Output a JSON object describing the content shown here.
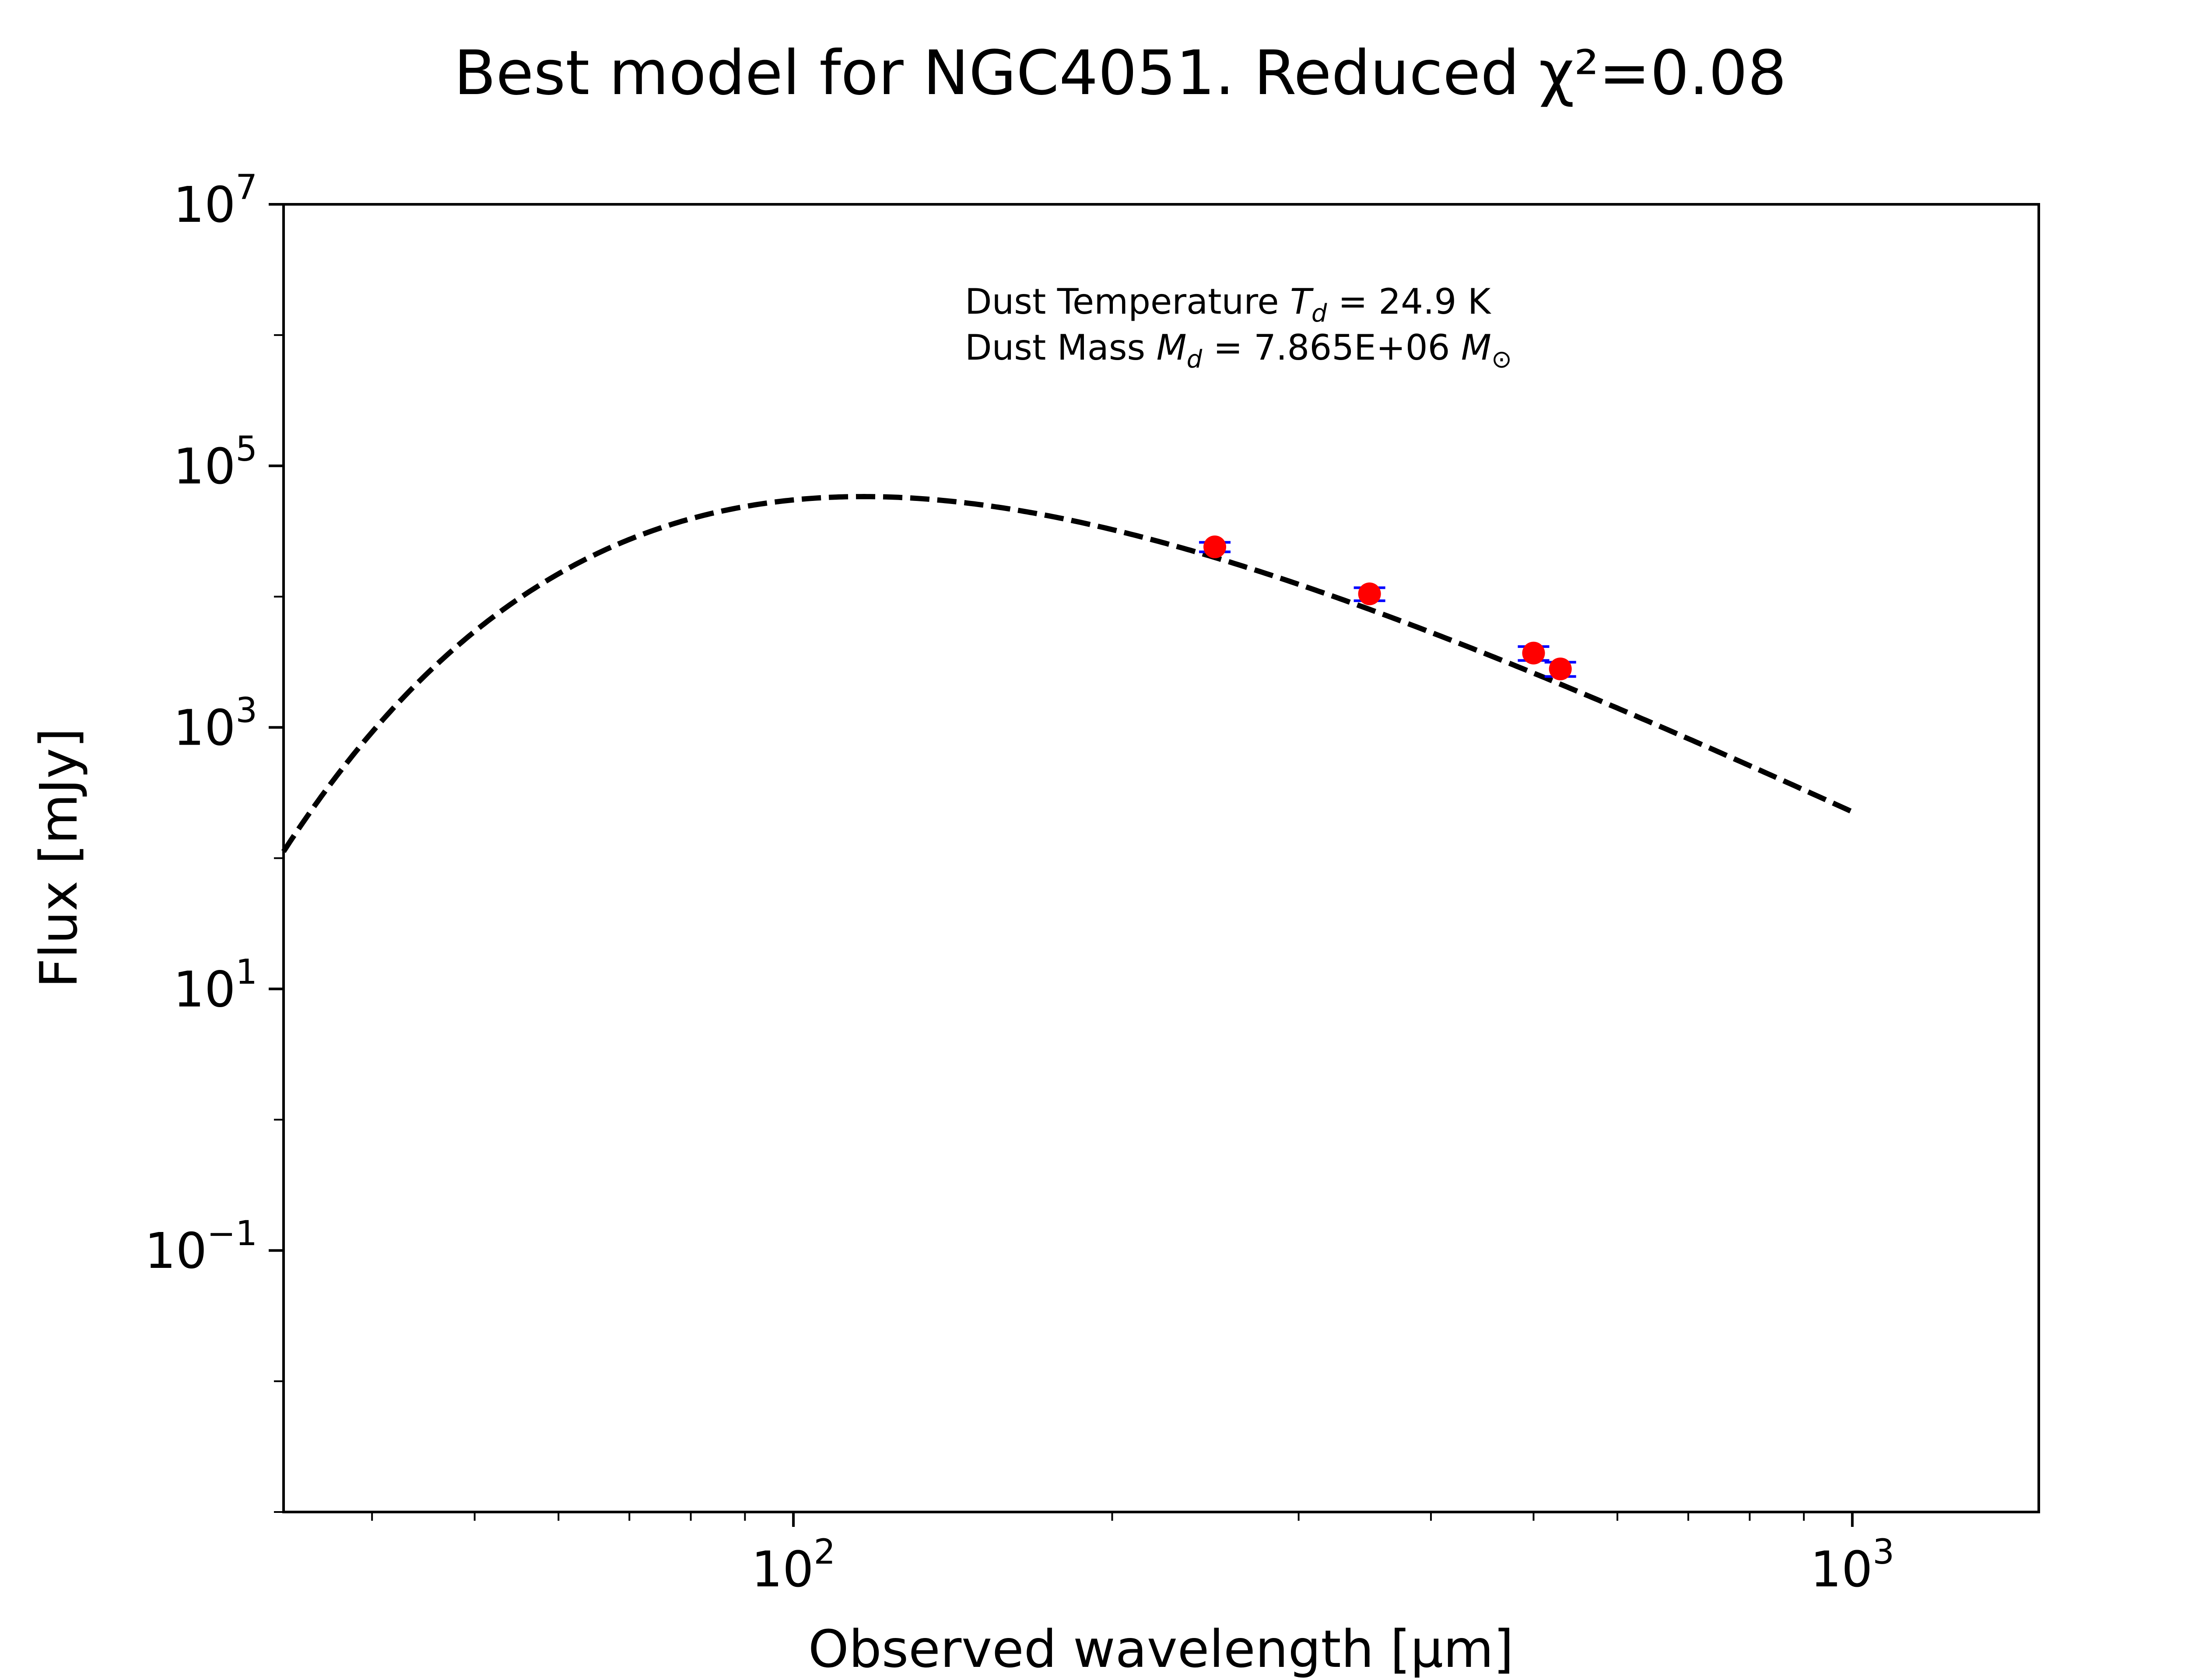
{
  "chart_data": {
    "type": "scatter",
    "title": "Best model for NGC4051. Reduced χ²=0.08",
    "xlabel": "Observed wavelength [μm]",
    "ylabel": "Flux [mJy]",
    "xscale": "log",
    "yscale": "log",
    "xlim": [
      33,
      1500
    ],
    "ylim": [
      0.001,
      10000000
    ],
    "grid": false,
    "x_tick_labels": [
      {
        "value": 100,
        "base": "10",
        "exp": "2"
      },
      {
        "value": 1000,
        "base": "10",
        "exp": "3"
      }
    ],
    "y_tick_labels": [
      {
        "value": 10000000,
        "base": "10",
        "exp": "7"
      },
      {
        "value": 100000,
        "base": "10",
        "exp": "5"
      },
      {
        "value": 1000,
        "base": "10",
        "exp": "3"
      },
      {
        "value": 10,
        "base": "10",
        "exp": "1"
      },
      {
        "value": 0.1,
        "base": "10",
        "exp": "−1"
      }
    ],
    "annotations": [
      {
        "prefix": "Dust Temperature ",
        "sym": "T",
        "sub": "d",
        "suffix": " = 24.9 K"
      },
      {
        "prefix": "Dust Mass ",
        "sym": "M",
        "sub": "d",
        "suffix": " = 7.865E+06 ",
        "sym2": "M",
        "sub2": "⊙"
      }
    ],
    "model": {
      "style": "dashed",
      "color": "#000000",
      "temperature_K": 24.9,
      "beta": 2.0,
      "peak_flux_mJy": 58000,
      "peak_wavelength_um": 121,
      "x_range": [
        33,
        1000
      ]
    },
    "observations": {
      "marker_color": "#ff0000",
      "errorbar_color": "#0000ff",
      "points": [
        {
          "x": 250,
          "y": 24000,
          "yerr": 2000
        },
        {
          "x": 350,
          "y": 10500,
          "yerr": 1200
        },
        {
          "x": 500,
          "y": 3700,
          "yerr": 450
        },
        {
          "x": 530,
          "y": 2800,
          "yerr": 350
        }
      ]
    }
  }
}
